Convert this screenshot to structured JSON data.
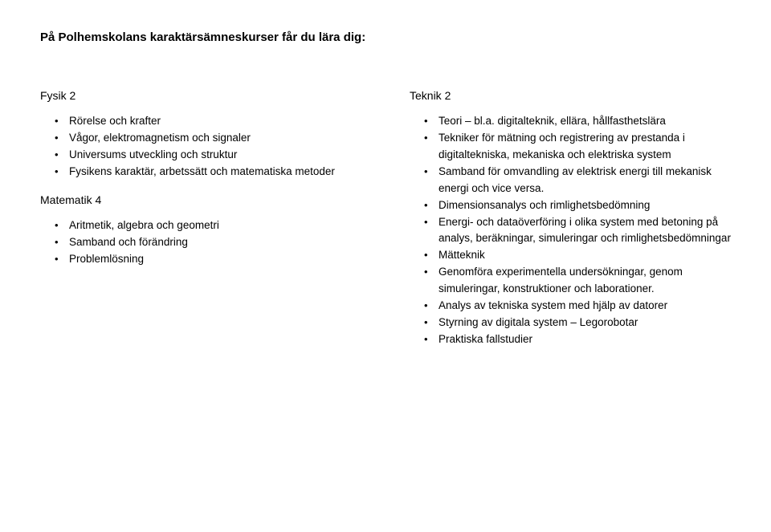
{
  "title": "På Polhemskolans karaktärsämneskurser får du lära dig:",
  "left": {
    "s1": {
      "head": "Fysik 2",
      "items": [
        "Rörelse och krafter",
        "Vågor, elektromagnetism och signaler",
        "Universums utveckling och struktur",
        "Fysikens karaktär, arbetssätt och matematiska metoder"
      ]
    },
    "s2": {
      "head": "Matematik 4",
      "items": [
        "Aritmetik, algebra och geometri",
        "Samband och förändring",
        "Problemlösning"
      ]
    }
  },
  "right": {
    "s1": {
      "head": "Teknik 2",
      "items": [
        "Teori – bl.a. digitalteknik, ellära, hållfasthetslära",
        "Tekniker för mätning och registrering av prestanda i digitaltekniska, mekaniska och elektriska system",
        "Samband för omvandling av elektrisk energi till mekanisk energi och vice versa.",
        "Dimensionsanalys och rimlighetsbedömning",
        "Energi- och dataöverföring i olika system med betoning på analys, beräkningar, simuleringar och rimlighetsbedömningar",
        "Mätteknik",
        "Genomföra experimentella undersökningar, genom simuleringar, konstruktioner och laborationer.",
        "Analys av tekniska system med hjälp av datorer",
        "Styrning av digitala system – Legorobotar",
        "Praktiska fallstudier"
      ]
    }
  }
}
